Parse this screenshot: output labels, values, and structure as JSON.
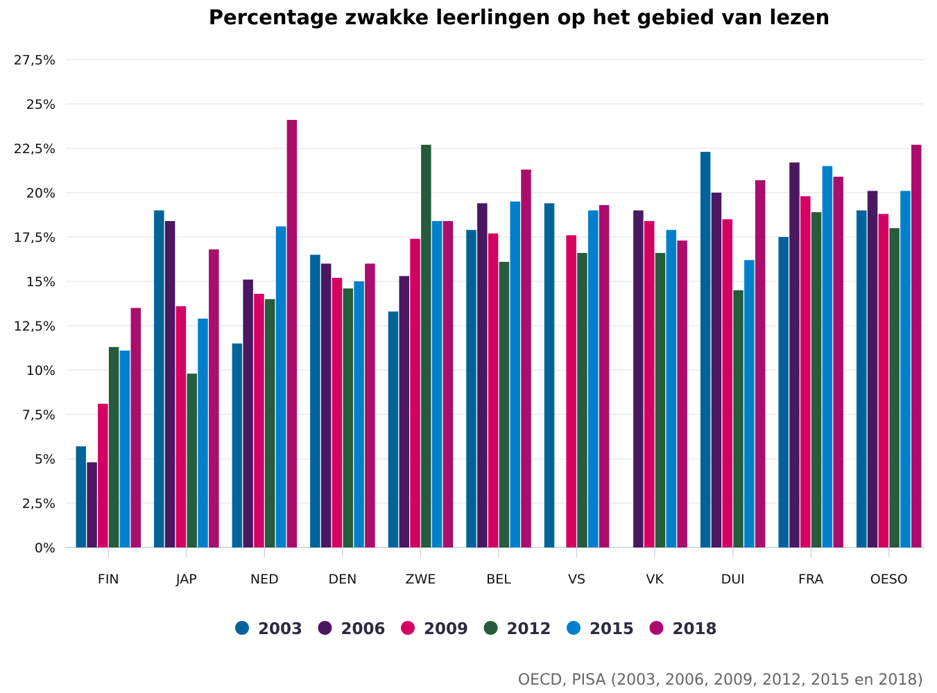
{
  "chart_data": {
    "type": "bar",
    "title": "Percentage zwakke leerlingen op het gebied van lezen",
    "xlabel": "",
    "ylabel": "",
    "ylim": [
      0,
      27.5
    ],
    "yticks": [
      "0%",
      "2,5%",
      "5%",
      "7,5%",
      "10%",
      "12,5%",
      "15%",
      "17,5%",
      "20%",
      "22,5%",
      "25%",
      "27,5%"
    ],
    "grid": true,
    "legend_position": "bottom",
    "categories": [
      "FIN",
      "JAP",
      "NED",
      "DEN",
      "ZWE",
      "BEL",
      "VS",
      "VK",
      "DUI",
      "FRA",
      "OESO"
    ],
    "series": [
      {
        "name": "2003",
        "color": "#00649a",
        "values": [
          5.7,
          19.0,
          11.5,
          16.5,
          13.3,
          17.9,
          19.4,
          null,
          22.3,
          17.5,
          19.0
        ]
      },
      {
        "name": "2006",
        "color": "#4a1761",
        "values": [
          4.8,
          18.4,
          15.1,
          16.0,
          15.3,
          19.4,
          null,
          19.0,
          20.0,
          21.7,
          20.1
        ]
      },
      {
        "name": "2009",
        "color": "#d30062",
        "values": [
          8.1,
          13.6,
          14.3,
          15.2,
          17.4,
          17.7,
          17.6,
          18.4,
          18.5,
          19.8,
          18.8
        ]
      },
      {
        "name": "2012",
        "color": "#265b3c",
        "values": [
          11.3,
          9.8,
          14.0,
          14.6,
          22.7,
          16.1,
          16.6,
          16.6,
          14.5,
          18.9,
          18.0
        ]
      },
      {
        "name": "2015",
        "color": "#0080cc",
        "values": [
          11.1,
          12.9,
          18.1,
          15.0,
          18.4,
          19.5,
          19.0,
          17.9,
          16.2,
          21.5,
          20.1
        ]
      },
      {
        "name": "2018",
        "color": "#aa0d6c",
        "values": [
          13.5,
          16.8,
          24.1,
          16.0,
          18.4,
          21.3,
          19.3,
          17.3,
          20.7,
          20.9,
          22.7
        ]
      }
    ]
  },
  "source": "OECD, PISA (2003, 2006, 2009, 2012, 2015 en 2018)"
}
